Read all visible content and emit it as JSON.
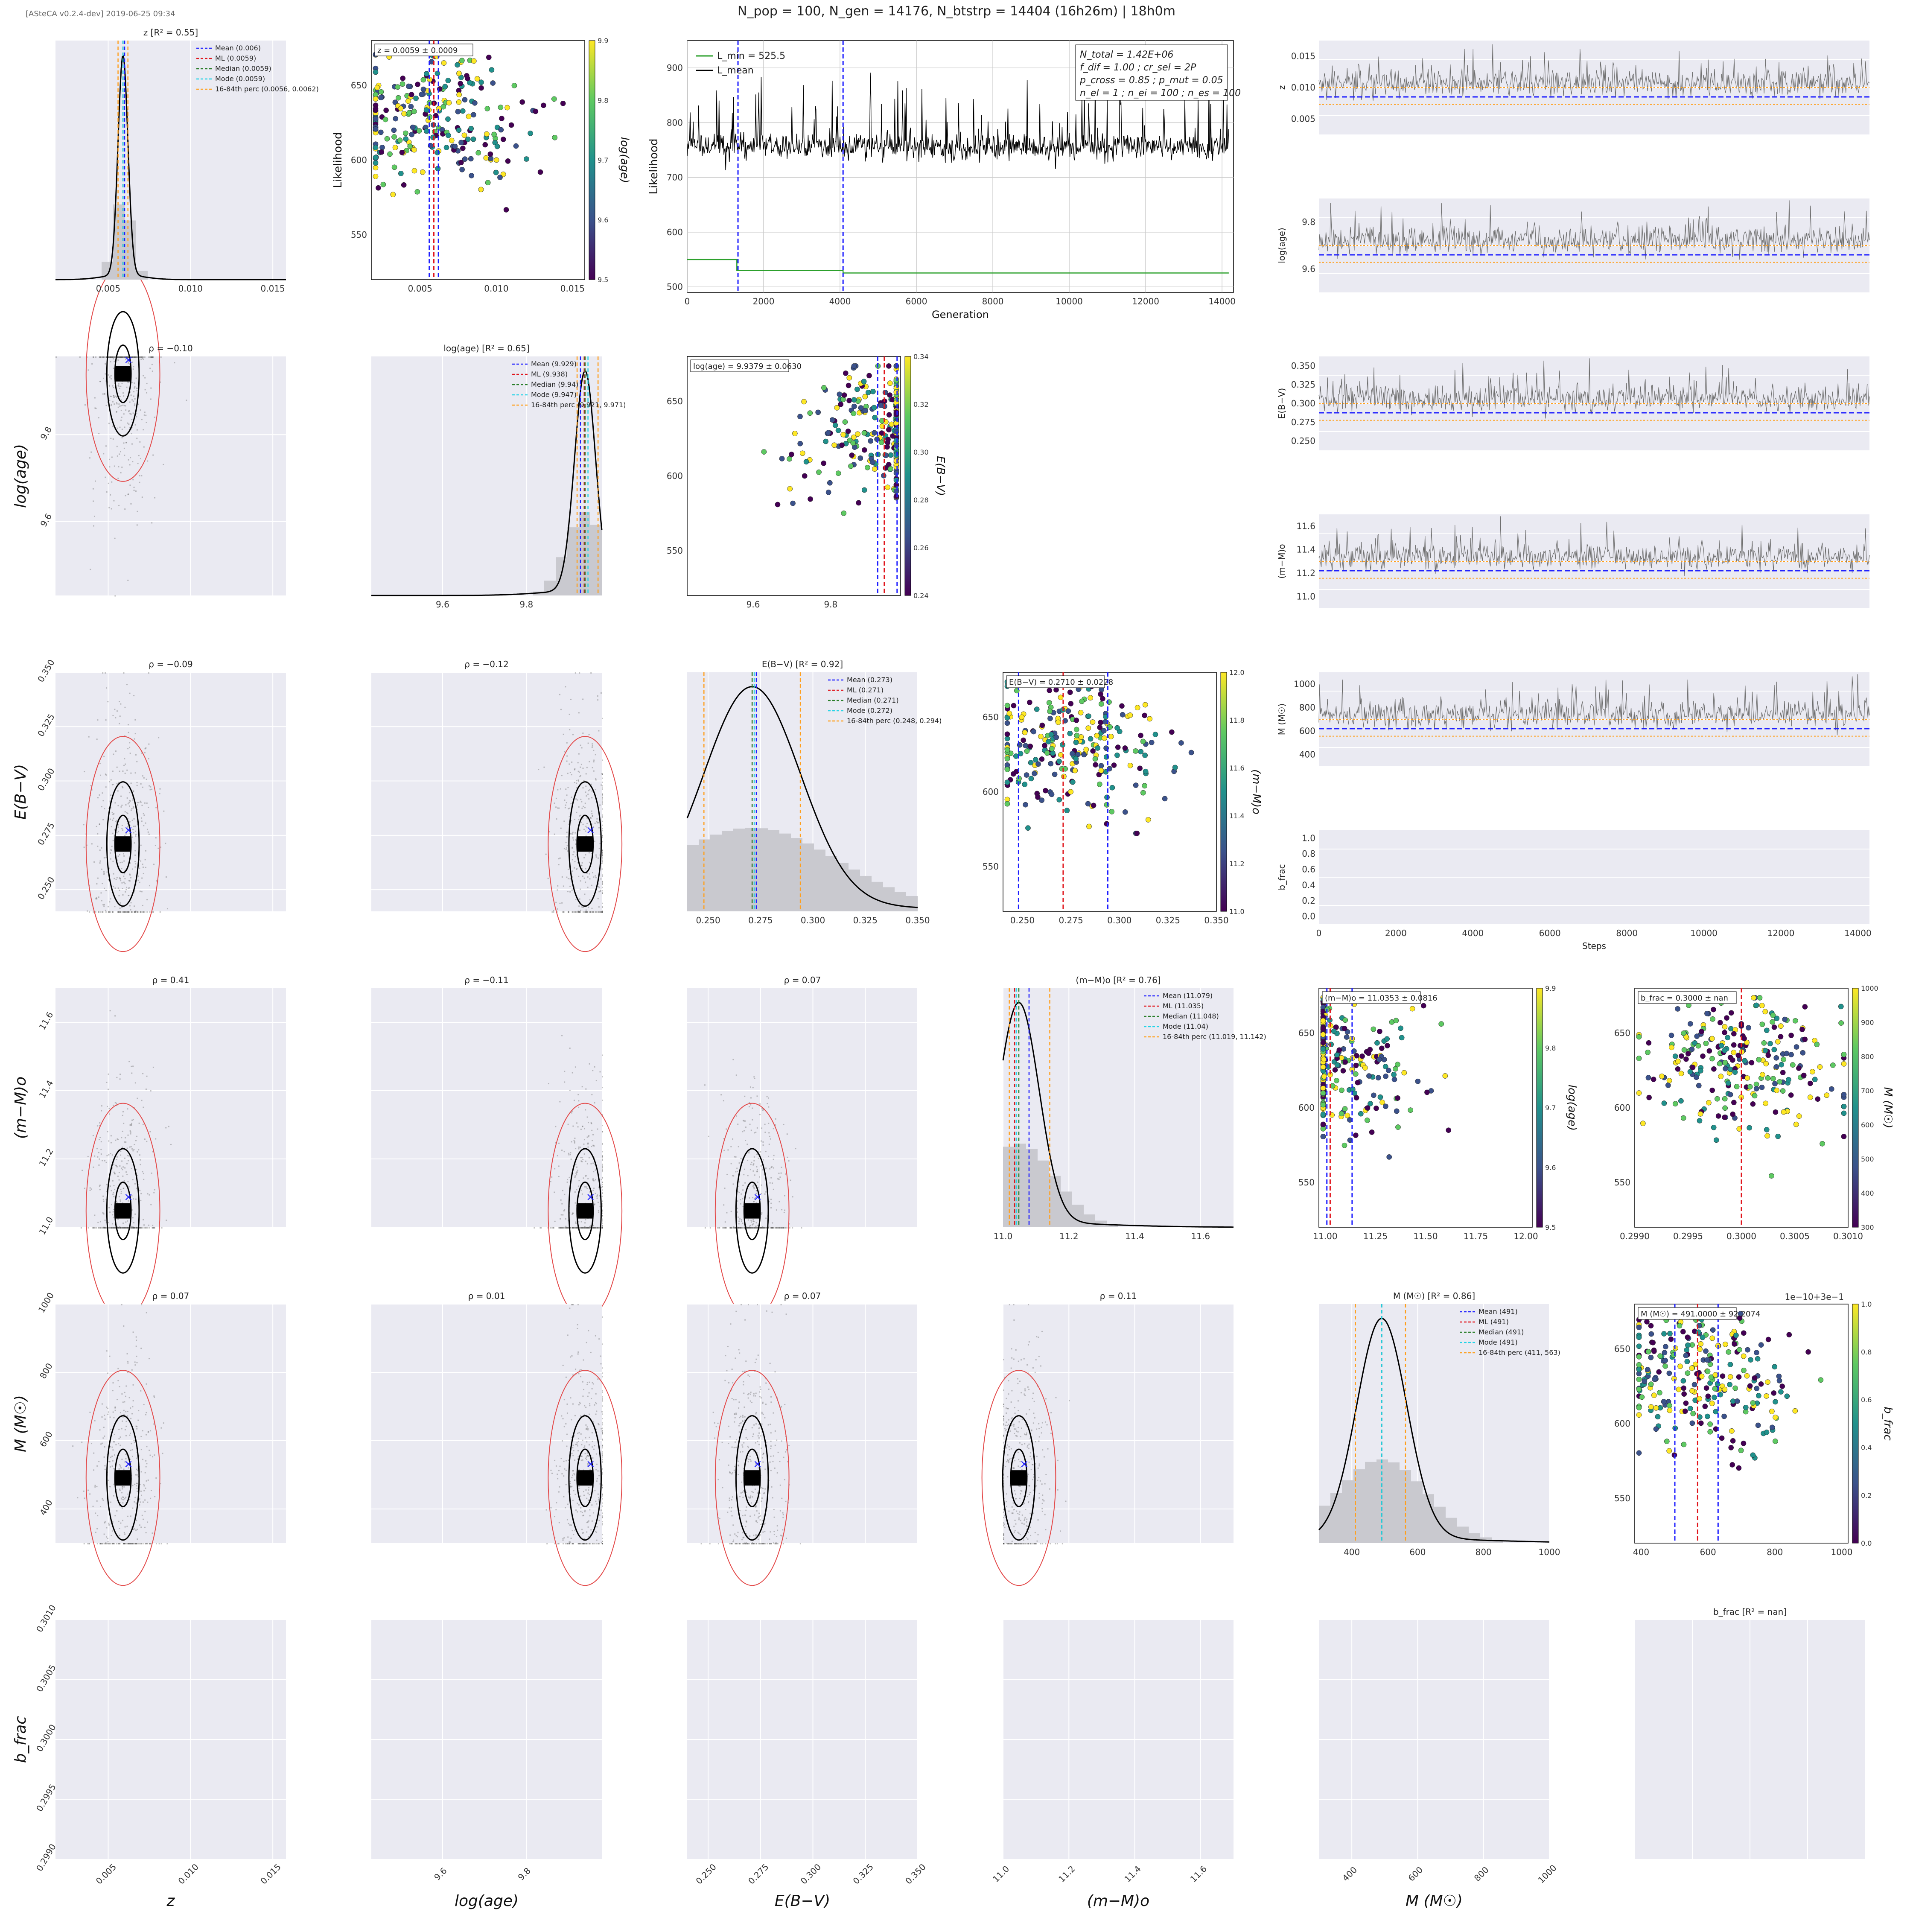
{
  "header": {
    "version": "[ASteCA v0.2.4-dev] 2019-06-25 09:34",
    "title": "N_pop = 100, N_gen = 14176, N_btstrp = 14404 (16h26m) | 18h0m"
  },
  "colors": {
    "bg": "#eaeaf2",
    "grid": "#ffffff",
    "trace": "#6e6e6e",
    "mean": "#1f1fff",
    "ml": "#e0161d",
    "median": "#2a7f2a",
    "mode": "#22d3e6",
    "perc": "#ff9f1c",
    "ellipse": "#e34a4a",
    "hist": "#c9c9cf"
  },
  "legend_names": [
    "Mean",
    "ML",
    "Median",
    "Mode",
    "16-84th perc"
  ],
  "params": [
    {
      "name": "z",
      "label": "z",
      "range": [
        0.0018,
        0.0158
      ],
      "ticks": [
        0.005,
        0.01,
        0.015
      ],
      "tick_labels": [
        "0.005",
        "0.010",
        "0.015"
      ],
      "mean": 0.006,
      "ml": 0.0059,
      "median": 0.0059,
      "mode": 0.0059,
      "p16": 0.0056,
      "p84": 0.0062,
      "r2": "0.55",
      "box": "z = 0.0059 ± 0.0009"
    },
    {
      "name": "log(age)",
      "label": "log(age)",
      "range": [
        9.43,
        9.98
      ],
      "ticks": [
        9.6,
        9.8
      ],
      "tick_labels": [
        "9.6",
        "9.8"
      ],
      "mean": 9.929,
      "ml": 9.938,
      "median": 9.94,
      "mode": 9.947,
      "p16": 9.921,
      "p84": 9.971,
      "r2": "0.65",
      "box": "log(age) = 9.9379 ± 0.0630"
    },
    {
      "name": "E(B-V)",
      "label": "E(B−V)",
      "range": [
        0.24,
        0.35
      ],
      "ticks": [
        0.25,
        0.275,
        0.3,
        0.325,
        0.35
      ],
      "tick_labels": [
        "0.250",
        "0.275",
        "0.300",
        "0.325",
        "0.350"
      ],
      "mean": 0.273,
      "ml": 0.271,
      "median": 0.271,
      "mode": 0.272,
      "p16": 0.248,
      "p84": 0.294,
      "r2": "0.92",
      "box": "E(B−V) = 0.2710 ± 0.0228"
    },
    {
      "name": "(m-M)o",
      "label": "(m−M)o",
      "range": [
        11.0,
        11.7
      ],
      "ticks": [
        11.0,
        11.2,
        11.4,
        11.6
      ],
      "tick_labels": [
        "11.0",
        "11.2",
        "11.4",
        "11.6"
      ],
      "mean": 11.079,
      "ml": 11.035,
      "median": 11.048,
      "mode": 11.04,
      "p16": 11.019,
      "p84": 11.142,
      "r2": "0.76",
      "box": "(m−M)o = 11.0353 ± 0.0816"
    },
    {
      "name": "M",
      "label": "M (M☉)",
      "range": [
        300,
        1000
      ],
      "ticks": [
        400,
        600,
        800,
        1000
      ],
      "tick_labels": [
        "400",
        "600",
        "800",
        "1000"
      ],
      "mean": 491,
      "ml": 491,
      "median": 491,
      "mode": 491,
      "p16": 411,
      "p84": 563,
      "r2": "0.86",
      "box": "M (M☉) = 491.0000 ± 92.2074"
    },
    {
      "name": "b_frac",
      "label": "b_frac",
      "range": [
        0.299,
        0.301
      ],
      "ticks": [
        0.299,
        0.2995,
        0.3,
        0.3005,
        0.301
      ],
      "tick_labels": [
        "0.2990",
        "0.2995",
        "0.3000",
        "0.3005",
        "0.3010"
      ],
      "mean": 0.3,
      "ml": 0.3,
      "median": 0.3,
      "mode": 0.3,
      "p16": 0.3,
      "p84": 0.3,
      "r2": "nan",
      "box": "b_frac = 0.3000 ± nan"
    }
  ],
  "corner_rho": [
    {
      "row": 1,
      "col": 0,
      "text": "ρ = −0.10"
    },
    {
      "row": 2,
      "col": 0,
      "text": "ρ = −0.09"
    },
    {
      "row": 2,
      "col": 1,
      "text": "ρ = −0.12"
    },
    {
      "row": 3,
      "col": 0,
      "text": "ρ = 0.41"
    },
    {
      "row": 3,
      "col": 1,
      "text": "ρ = −0.11"
    },
    {
      "row": 3,
      "col": 2,
      "text": "ρ = 0.07"
    },
    {
      "row": 4,
      "col": 0,
      "text": "ρ = 0.07"
    },
    {
      "row": 4,
      "col": 1,
      "text": "ρ = 0.01"
    },
    {
      "row": 4,
      "col": 2,
      "text": "ρ = 0.07"
    },
    {
      "row": 4,
      "col": 3,
      "text": "ρ = 0.11"
    }
  ],
  "likelihood_panel": {
    "ylabel": "Likelihood",
    "xlabel": "Generation",
    "xticks": [
      0,
      2000,
      4000,
      6000,
      8000,
      10000,
      12000,
      14000
    ],
    "yticks": [
      500,
      600,
      700,
      800,
      900
    ],
    "legend": [
      "L_min = 525.5",
      "L_mean"
    ],
    "info": [
      "N_total = 1.42E+06",
      "f_dif = 1.00 ; cr_sel = 2P",
      "p_cross = 0.85 ; p_mut = 0.05",
      "n_el = 1 ; n_ei = 100 ; n_es = 100"
    ]
  },
  "likelihood_scatter_yticks": [
    550,
    600,
    650
  ],
  "colorbars": [
    {
      "panel": "z",
      "label": "log(age)",
      "ticks": [
        "9.5",
        "9.6",
        "9.7",
        "9.8",
        "9.9"
      ]
    },
    {
      "panel": "log(age)",
      "label": "E(B−V)",
      "ticks": [
        "0.24",
        "0.26",
        "0.28",
        "0.30",
        "0.32",
        "0.34"
      ]
    },
    {
      "panel": "E(B-V)",
      "label": "(m−M)o",
      "ticks": [
        "11.0",
        "11.2",
        "11.4",
        "11.6",
        "11.8",
        "12.0"
      ]
    },
    {
      "panel": "(m-M)o",
      "label": "log(age)",
      "ticks": [
        "9.5",
        "9.6",
        "9.7",
        "9.8",
        "9.9"
      ]
    },
    {
      "panel": "b_frac",
      "label": "M (M☉)",
      "ticks": [
        "300",
        "400",
        "500",
        "600",
        "700",
        "800",
        "900",
        "1000"
      ]
    },
    {
      "panel": "M",
      "label": "b_frac",
      "ticks": [
        "0.0",
        "0.2",
        "0.4",
        "0.6",
        "0.8",
        "1.0"
      ]
    }
  ],
  "scatter_xlims": {
    "(m-M)o": [
      10.98,
      12.02
    ],
    "M": [
      270,
      1020
    ]
  },
  "scatter_xticks": {
    "(m-M)o": [
      "11.00",
      "11.25",
      "11.50",
      "11.75",
      "12.00"
    ],
    "M": [
      "400",
      "600",
      "800",
      "1000"
    ]
  },
  "bfrac_offset_text": "1e−10+3e−1",
  "traces": {
    "xlabel": "Steps",
    "xticks": [
      0,
      2000,
      4000,
      6000,
      8000,
      10000,
      12000,
      14000
    ],
    "panels": [
      {
        "param": "z",
        "yticks": [
          "0.005",
          "0.010",
          "0.015"
        ],
        "ylabel": "z"
      },
      {
        "param": "log(age)",
        "yticks": [
          "9.6",
          "9.8"
        ],
        "ylabel": "log(age)"
      },
      {
        "param": "E(B-V)",
        "yticks": [
          "0.250",
          "0.275",
          "0.300",
          "0.325",
          "0.350"
        ],
        "ylabel": "E(B−V)"
      },
      {
        "param": "(m-M)o",
        "yticks": [
          "11.0",
          "11.2",
          "11.4",
          "11.6"
        ],
        "ylabel": "(m−M)o"
      },
      {
        "param": "M",
        "yticks": [
          "400",
          "600",
          "800",
          "1000"
        ],
        "ylabel": "M (M☉)"
      },
      {
        "param": "b_frac",
        "yticks": [
          "0.0",
          "0.2",
          "0.4",
          "0.6",
          "0.8",
          "1.0"
        ],
        "ylabel": "b_frac"
      }
    ]
  },
  "chart_data": {
    "type": "scatter",
    "title": "N_pop = 100, N_gen = 14176, N_btstrp = 14404 (16h26m) | 18h0m",
    "parameters": [
      "z",
      "log(age)",
      "E(B-V)",
      "(m-M)o",
      "M",
      "b_frac"
    ],
    "best_fit": {
      "z": 0.0059,
      "log(age)": 9.9379,
      "E(B-V)": 0.271,
      "(m-M)o": 11.0353,
      "M": 491.0,
      "b_frac": 0.3
    },
    "uncertainty": {
      "z": 0.0009,
      "log(age)": 0.063,
      "E(B-V)": 0.0228,
      "(m-M)o": 0.0816,
      "M": 92.2074,
      "b_frac": "nan"
    },
    "L_min": 525.5,
    "generations": 14176
  }
}
